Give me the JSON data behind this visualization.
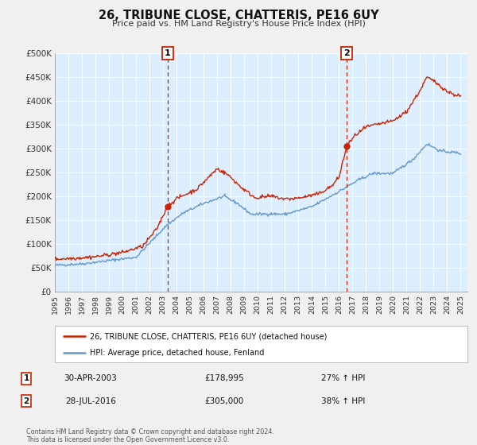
{
  "title": "26, TRIBUNE CLOSE, CHATTERIS, PE16 6UY",
  "subtitle": "Price paid vs. HM Land Registry's House Price Index (HPI)",
  "legend_line1": "26, TRIBUNE CLOSE, CHATTERIS, PE16 6UY (detached house)",
  "legend_line2": "HPI: Average price, detached house, Fenland",
  "footnote1": "Contains HM Land Registry data © Crown copyright and database right 2024.",
  "footnote2": "This data is licensed under the Open Government Licence v3.0.",
  "sale1_date": "30-APR-2003",
  "sale1_price": "£178,995",
  "sale1_hpi": "27% ↑ HPI",
  "sale1_x": 2003.33,
  "sale1_y": 178995,
  "sale2_date": "28-JUL-2016",
  "sale2_price": "£305,000",
  "sale2_hpi": "38% ↑ HPI",
  "sale2_x": 2016.58,
  "sale2_y": 305000,
  "vline1_x": 2003.33,
  "vline2_x": 2016.58,
  "hpi_color": "#6699cc",
  "price_color": "#cc2200",
  "dot_color": "#cc2200",
  "background_color": "#ddeeff",
  "fig_bg": "#f0f0f0",
  "ylim": [
    0,
    500000
  ],
  "xlim_start": 1995.0,
  "xlim_end": 2025.5,
  "yticks": [
    0,
    50000,
    100000,
    150000,
    200000,
    250000,
    300000,
    350000,
    400000,
    450000,
    500000
  ],
  "ytick_labels": [
    "£0",
    "£50K",
    "£100K",
    "£150K",
    "£200K",
    "£250K",
    "£300K",
    "£350K",
    "£400K",
    "£450K",
    "£500K"
  ],
  "xticks": [
    1995,
    1996,
    1997,
    1998,
    1999,
    2000,
    2001,
    2002,
    2003,
    2004,
    2005,
    2006,
    2007,
    2008,
    2009,
    2010,
    2011,
    2012,
    2013,
    2014,
    2015,
    2016,
    2017,
    2018,
    2019,
    2020,
    2021,
    2022,
    2023,
    2024,
    2025
  ]
}
